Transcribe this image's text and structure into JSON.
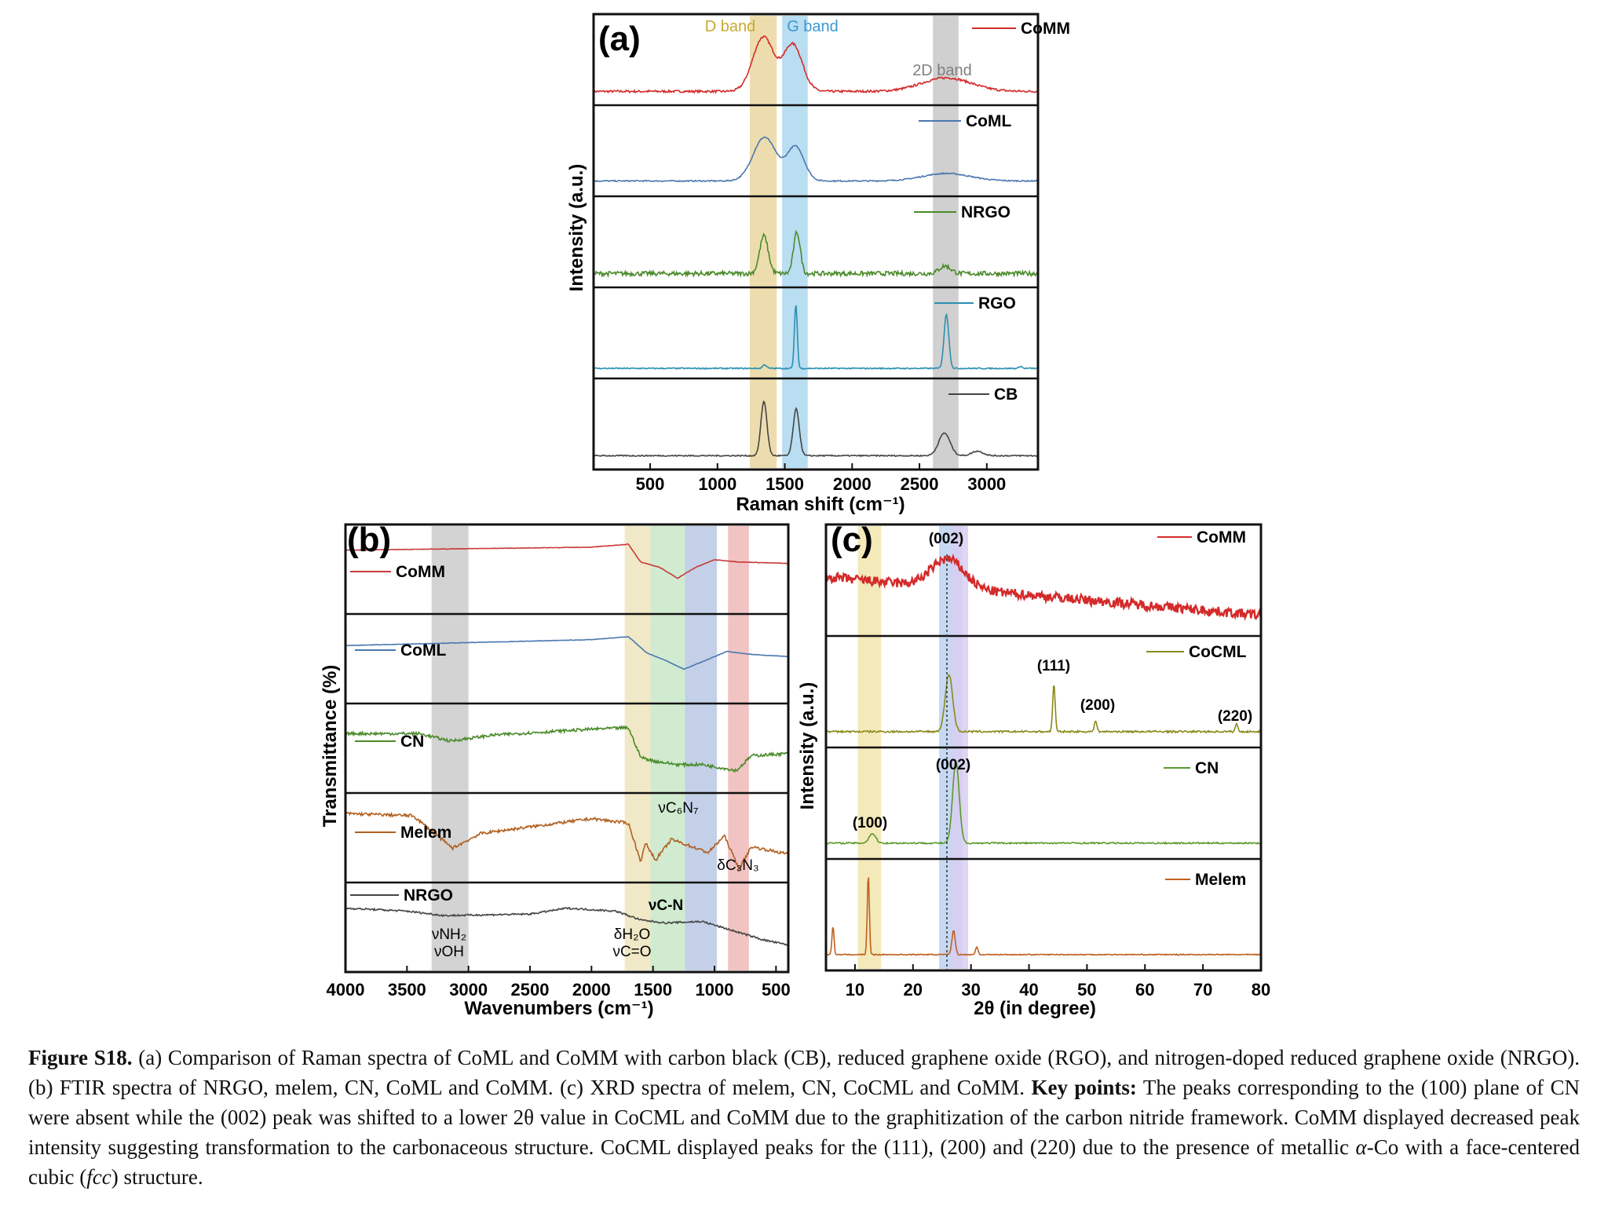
{
  "caption": {
    "label": "Figure S18.",
    "part1": "(a) Comparison of Raman spectra of CoML and CoMM with carbon black (CB), reduced graphene oxide (RGO), and nitrogen-doped reduced graphene oxide (NRGO). (b) FTIR spectra of NRGO, melem, CN, CoML and CoMM. (c) XRD spectra of melem, CN, CoCML and CoMM.",
    "key_label": "Key points:",
    "part2a": "The peaks corresponding to the (100) plane of CN were absent while the (002) peak was shifted to a lower 2θ value in CoCML and CoMM due to the graphitization of the carbon nitride framework. CoMM displayed decreased peak intensity suggesting transformation to the carbonaceous structure. CoCML displayed peaks for the (111), (200) and (220) due to the presence of metallic ",
    "alpha": "α",
    "part2b": "-Co with a face-centered cubic (",
    "fcc": "fcc",
    "part2c": ") structure."
  },
  "chart_data": [
    {
      "type": "line",
      "panel": "(a)",
      "xlabel": "Raman shift (cm⁻¹)",
      "ylabel": "Intensity (a.u.)",
      "xlim": [
        80,
        3380
      ],
      "x_ticks": [
        "500",
        "1000",
        "1500",
        "2000",
        "2500",
        "3000"
      ],
      "x_tick_values": [
        500,
        1000,
        1500,
        2000,
        2500,
        3000
      ],
      "bands": [
        {
          "label": "D band",
          "from": 1240,
          "to": 1440,
          "color": "#e8d49a"
        },
        {
          "label": "G band",
          "from": 1480,
          "to": 1670,
          "color": "#a8d4ee"
        },
        {
          "label": "2D band",
          "from": 2600,
          "to": 2790,
          "color": "#c4c4c4"
        }
      ],
      "series": [
        {
          "name": "CoMM",
          "color": "#d42a2a",
          "baseline": 0.1,
          "noise": 0.015,
          "peaks": [
            [
              1340,
              0.72,
              110
            ],
            [
              1560,
              0.62,
              100
            ],
            [
              2700,
              0.18,
              260
            ]
          ]
        },
        {
          "name": "CoML",
          "color": "#4a78b0",
          "baseline": 0.12,
          "noise": 0.008,
          "peaks": [
            [
              1350,
              0.58,
              120
            ],
            [
              1580,
              0.45,
              90
            ],
            [
              2700,
              0.1,
              250
            ]
          ]
        },
        {
          "name": "NRGO",
          "color": "#4a8a2a",
          "baseline": 0.1,
          "noise": 0.03,
          "peaks": [
            [
              1345,
              0.5,
              45
            ],
            [
              1590,
              0.55,
              35
            ],
            [
              2690,
              0.1,
              60
            ]
          ]
        },
        {
          "name": "RGO",
          "color": "#2a90b0",
          "baseline": 0.05,
          "noise": 0.008,
          "peaks": [
            [
              1350,
              0.05,
              20
            ],
            [
              1582,
              0.85,
              15
            ],
            [
              2700,
              0.72,
              25
            ],
            [
              3250,
              0.03,
              15
            ]
          ]
        },
        {
          "name": "CB",
          "color": "#444444",
          "baseline": 0.1,
          "noise": 0.008,
          "peaks": [
            [
              1345,
              0.72,
              32
            ],
            [
              1585,
              0.62,
              32
            ],
            [
              2685,
              0.3,
              60
            ],
            [
              2930,
              0.06,
              60
            ]
          ]
        }
      ]
    },
    {
      "type": "line",
      "panel": "(b)",
      "xlabel": "Wavenumbers (cm⁻¹)",
      "ylabel": "Transmittance (%)",
      "xlim": [
        4000,
        400
      ],
      "x_ticks": [
        "4000",
        "3500",
        "3000",
        "2500",
        "2000",
        "1500",
        "1000",
        "500"
      ],
      "x_tick_values": [
        4000,
        3500,
        3000,
        2500,
        2000,
        1500,
        1000,
        500
      ],
      "bands": [
        {
          "from": 3300,
          "to": 3000,
          "color": "#c8c8c8"
        },
        {
          "from": 1730,
          "to": 1520,
          "color": "#ece2b8"
        },
        {
          "from": 1520,
          "to": 1240,
          "color": "#c4e6c4"
        },
        {
          "from": 1240,
          "to": 980,
          "color": "#b4c4e2"
        },
        {
          "from": 890,
          "to": 720,
          "color": "#eeb4b4"
        }
      ],
      "band_labels": [
        "νNH₂",
        "νOH",
        "δH₂O",
        "νC=O",
        "νC-N",
        "νC₆N₇",
        "δC₃N₃"
      ],
      "series": [
        {
          "name": "CoMM",
          "color": "#c83a3a",
          "noise": 0.003,
          "points": [
            [
              4000,
              0.78
            ],
            [
              3000,
              0.8
            ],
            [
              2000,
              0.82
            ],
            [
              1700,
              0.86
            ],
            [
              1600,
              0.62
            ],
            [
              1450,
              0.55
            ],
            [
              1300,
              0.4
            ],
            [
              1150,
              0.55
            ],
            [
              1000,
              0.65
            ],
            [
              800,
              0.62
            ],
            [
              400,
              0.6
            ]
          ]
        },
        {
          "name": "CoML",
          "color": "#4a78b0",
          "noise": 0.003,
          "points": [
            [
              4000,
              0.7
            ],
            [
              3000,
              0.74
            ],
            [
              2000,
              0.78
            ],
            [
              1700,
              0.82
            ],
            [
              1550,
              0.6
            ],
            [
              1400,
              0.5
            ],
            [
              1250,
              0.38
            ],
            [
              1100,
              0.48
            ],
            [
              900,
              0.62
            ],
            [
              700,
              0.58
            ],
            [
              400,
              0.55
            ]
          ]
        },
        {
          "name": "CN",
          "color": "#4a8a2a",
          "noise": 0.02,
          "points": [
            [
              4000,
              0.72
            ],
            [
              3400,
              0.72
            ],
            [
              3150,
              0.62
            ],
            [
              2800,
              0.7
            ],
            [
              2000,
              0.78
            ],
            [
              1700,
              0.8
            ],
            [
              1600,
              0.4
            ],
            [
              1500,
              0.35
            ],
            [
              1300,
              0.3
            ],
            [
              1100,
              0.3
            ],
            [
              820,
              0.22
            ],
            [
              700,
              0.42
            ],
            [
              400,
              0.45
            ]
          ]
        },
        {
          "name": "Melem",
          "color": "#b06020",
          "noise": 0.02,
          "points": [
            [
              4000,
              0.85
            ],
            [
              3450,
              0.82
            ],
            [
              3130,
              0.38
            ],
            [
              2900,
              0.58
            ],
            [
              2000,
              0.78
            ],
            [
              1700,
              0.72
            ],
            [
              1600,
              0.2
            ],
            [
              1560,
              0.45
            ],
            [
              1480,
              0.22
            ],
            [
              1350,
              0.5
            ],
            [
              1050,
              0.32
            ],
            [
              920,
              0.55
            ],
            [
              800,
              0.1
            ],
            [
              700,
              0.4
            ],
            [
              400,
              0.3
            ]
          ]
        },
        {
          "name": "NRGO",
          "color": "#444444",
          "noise": 0.012,
          "points": [
            [
              4000,
              0.78
            ],
            [
              3500,
              0.74
            ],
            [
              3200,
              0.68
            ],
            [
              2500,
              0.7
            ],
            [
              2200,
              0.78
            ],
            [
              1800,
              0.74
            ],
            [
              1600,
              0.62
            ],
            [
              1400,
              0.58
            ],
            [
              1100,
              0.6
            ],
            [
              900,
              0.5
            ],
            [
              600,
              0.35
            ],
            [
              400,
              0.28
            ]
          ]
        }
      ]
    },
    {
      "type": "line",
      "panel": "(c)",
      "xlabel": "2θ (in degree)",
      "ylabel": "Intensity (a.u.)",
      "xlim": [
        5,
        80
      ],
      "x_ticks": [
        "10",
        "20",
        "30",
        "40",
        "50",
        "60",
        "70",
        "80"
      ],
      "x_tick_values": [
        10,
        20,
        30,
        40,
        50,
        60,
        70,
        80
      ],
      "bands": [
        {
          "from": 24.5,
          "to": 28.5,
          "color": "#b8cff0"
        },
        {
          "from": 26.5,
          "to": 29.5,
          "color": "#d8ccf0"
        },
        {
          "from": 10.5,
          "to": 14.5,
          "color": "#f0e4a8"
        }
      ],
      "peak_labels": [
        "(002)",
        "(111)",
        "(200)",
        "(220)",
        "(002)",
        "(100)"
      ],
      "series": [
        {
          "name": "CoMM",
          "color": "#d42a2a",
          "noise": 0.05,
          "peaks": [
            [
              26,
              0.3,
              4
            ]
          ]
        },
        {
          "name": "CoCML",
          "color": "#8a8a1a",
          "noise": 0.01,
          "peaks": [
            [
              26.2,
              0.6,
              0.9
            ],
            [
              44.3,
              0.5,
              0.3
            ],
            [
              51.5,
              0.12,
              0.3
            ],
            [
              75.8,
              0.08,
              0.3
            ]
          ]
        },
        {
          "name": "CN",
          "color": "#5a9a2a",
          "noise": 0.008,
          "peaks": [
            [
              27.4,
              0.85,
              0.8
            ],
            [
              13,
              0.1,
              0.8
            ]
          ]
        },
        {
          "name": "Melem",
          "color": "#c06020",
          "noise": 0.005,
          "peaks": [
            [
              6.2,
              0.3,
              0.25
            ],
            [
              12.3,
              0.85,
              0.25
            ],
            [
              27,
              0.25,
              0.4
            ],
            [
              31,
              0.08,
              0.3
            ]
          ]
        }
      ]
    }
  ],
  "labels": {
    "a_tag": "(a)",
    "b_tag": "(b)",
    "c_tag": "(c)",
    "d_band": "D band",
    "g_band": "G band",
    "band_2d": "2D band",
    "b_nh2": "νNH₂",
    "b_oh": "νOH",
    "b_h2o": "δH₂O",
    "b_co": "νC=O",
    "b_cn": "νC-N",
    "b_c6n7": "νC₆N₇",
    "b_c3n3": "δC₃N₃",
    "c_002_top": "(002)",
    "c_111": "(111)",
    "c_200": "(200)",
    "c_220": "(220)",
    "c_002_mid": "(002)",
    "c_100": "(100)"
  }
}
